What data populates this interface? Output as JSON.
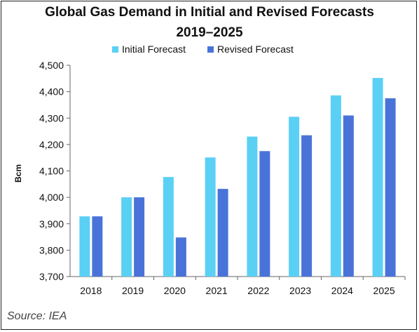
{
  "chart_data": {
    "type": "bar",
    "title": "Global Gas Demand in Initial and Revised Forecasts",
    "subtitle": "2019–2025",
    "xlabel": "",
    "ylabel": "Bcm",
    "categories": [
      "2018",
      "2019",
      "2020",
      "2021",
      "2022",
      "2023",
      "2024",
      "2025"
    ],
    "series": [
      {
        "name": "Initial Forecast",
        "color": "#5BD0F5",
        "values": [
          3928,
          4000,
          4077,
          4151,
          4230,
          4305,
          4386,
          4452
        ]
      },
      {
        "name": "Revised Forecast",
        "color": "#4A73D9",
        "values": [
          3928,
          4000,
          3848,
          4032,
          4175,
          4235,
          4310,
          4375
        ]
      }
    ],
    "ylim": [
      3700,
      4500
    ],
    "yticks": [
      "3,700",
      "3,800",
      "3,900",
      "4,000",
      "4,100",
      "4,200",
      "4,300",
      "4,400",
      "4,500"
    ],
    "ytick_values": [
      3700,
      3800,
      3900,
      4000,
      4100,
      4200,
      4300,
      4400,
      4500
    ],
    "grid": false,
    "legend": "top-center"
  },
  "source": "Source: IEA"
}
